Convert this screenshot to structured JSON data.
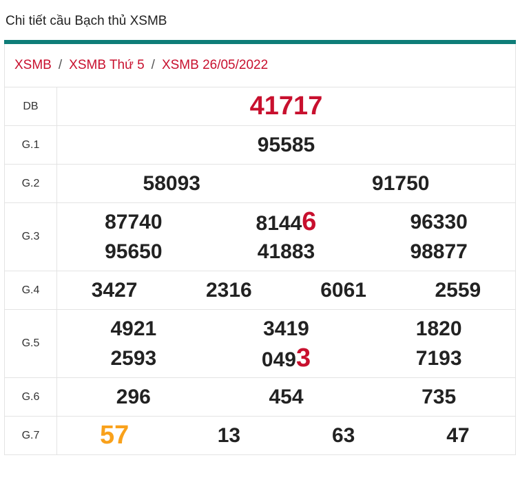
{
  "header": {
    "title": "Chi tiết cầu Bạch thủ XSMB"
  },
  "breadcrumb": [
    "XSMB",
    "XSMB Thứ 5",
    "XSMB 26/05/2022"
  ],
  "breadcrumb_separator": "/",
  "table": {
    "rows": [
      {
        "label": "DB",
        "lines": [
          [
            {
              "accent": "41717",
              "accent_color": "red"
            }
          ]
        ]
      },
      {
        "label": "G.1",
        "lines": [
          [
            {
              "plain": "95585"
            }
          ]
        ]
      },
      {
        "label": "G.2",
        "lines": [
          [
            {
              "plain": "58093"
            },
            {
              "plain": "91750"
            }
          ]
        ]
      },
      {
        "label": "G.3",
        "lines": [
          [
            {
              "plain": "87740"
            },
            {
              "plain": "8144",
              "accent": "6",
              "accent_color": "red"
            },
            {
              "plain": "96330"
            }
          ],
          [
            {
              "plain": "95650"
            },
            {
              "plain": "41883"
            },
            {
              "plain": "98877"
            }
          ]
        ]
      },
      {
        "label": "G.4",
        "lines": [
          [
            {
              "plain": "3427"
            },
            {
              "plain": "2316"
            },
            {
              "plain": "6061"
            },
            {
              "plain": "2559"
            }
          ]
        ]
      },
      {
        "label": "G.5",
        "lines": [
          [
            {
              "plain": "4921"
            },
            {
              "plain": "3419"
            },
            {
              "plain": "1820"
            }
          ],
          [
            {
              "plain": "2593"
            },
            {
              "plain": "049",
              "accent": "3",
              "accent_color": "red"
            },
            {
              "plain": "7193"
            }
          ]
        ]
      },
      {
        "label": "G.6",
        "lines": [
          [
            {
              "plain": "296"
            },
            {
              "plain": "454"
            },
            {
              "plain": "735"
            }
          ]
        ]
      },
      {
        "label": "G.7",
        "lines": [
          [
            {
              "accent": "57",
              "accent_color": "orange"
            },
            {
              "plain": "13"
            },
            {
              "plain": "63"
            },
            {
              "plain": "47"
            }
          ]
        ]
      }
    ]
  }
}
